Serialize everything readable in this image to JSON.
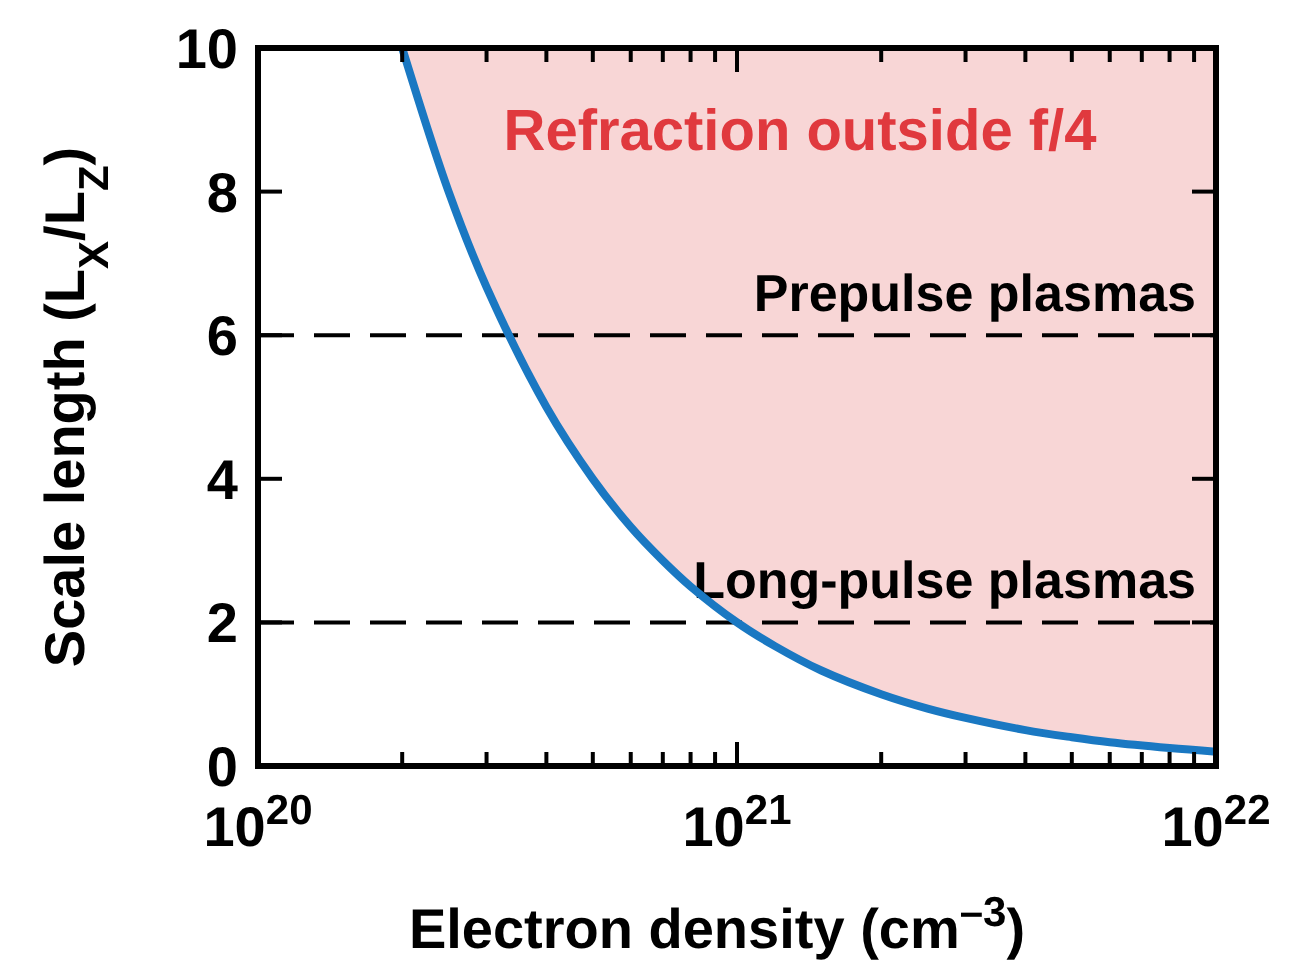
{
  "chart_data": {
    "type": "line",
    "xlabel": "Electron density (cm$^{–3}$)",
    "ylabel": "Scale length (L$_{X}$/L$_{Z}$)",
    "log": "x",
    "xlim": [
      1e+20,
      1e+22
    ],
    "xticks": [
      {
        "value": 1e+20,
        "label": "10$^{20}$"
      },
      {
        "value": 2e+20,
        "label": null
      },
      {
        "value": 3e+20,
        "label": null
      },
      {
        "value": 4e+20,
        "label": null
      },
      {
        "value": 5e+20,
        "label": null
      },
      {
        "value": 6e+20,
        "label": null
      },
      {
        "value": 7e+20,
        "label": null
      },
      {
        "value": 8e+20,
        "label": null
      },
      {
        "value": 9e+20,
        "label": null
      },
      {
        "value": 1e+21,
        "label": "10$^{21}$"
      },
      {
        "value": 2e+21,
        "label": null
      },
      {
        "value": 3e+21,
        "label": null
      },
      {
        "value": 4e+21,
        "label": null
      },
      {
        "value": 5e+21,
        "label": null
      },
      {
        "value": 6e+21,
        "label": null
      },
      {
        "value": 7e+21,
        "label": null
      },
      {
        "value": 8e+21,
        "label": null
      },
      {
        "value": 9e+21,
        "label": null
      },
      {
        "value": 1e+22,
        "label": "10$^{22}$"
      }
    ],
    "ylim": [
      0,
      10
    ],
    "yticks": [
      0,
      2,
      4,
      6,
      8,
      10
    ],
    "grid": false,
    "marker": "none",
    "line_style": "solid",
    "x": [
      2e+20,
      2.5e+20,
      3e+20,
      4e+20,
      5e+20,
      6e+20,
      7e+20,
      8e+20,
      1e+21,
      1.2e+21,
      1.5e+21,
      2e+21,
      2.5e+21,
      3e+21,
      4e+21,
      5e+21,
      6e+21,
      8e+21,
      1e+22
    ],
    "series": [
      {
        "color": "#1a78c2",
        "lower": [
          10,
          8,
          6.67,
          5,
          4,
          3.33,
          2.86,
          2.5,
          2,
          1.67,
          1.33,
          1,
          0.8,
          0.67,
          0.5,
          0.4,
          0.33,
          0.25,
          0.2
        ],
        "upper": [
          10,
          10,
          10,
          10,
          10,
          10,
          10,
          10,
          10,
          10,
          10,
          10,
          10,
          10,
          10,
          10,
          10,
          10,
          10
        ],
        "values": [
          10,
          8,
          6.67,
          5,
          4,
          3.33,
          2.86,
          2.5,
          2,
          1.67,
          1.33,
          1,
          0.8,
          0.67,
          0.5,
          0.4,
          0.33,
          0.25,
          0.2
        ]
      }
    ],
    "ref_lines": [
      {
        "axis": "y",
        "value": 6,
        "label": "Prepulse plasmas",
        "color": "#000000",
        "line_style": "dashed"
      },
      {
        "axis": "y",
        "value": 2,
        "label": "Long-pulse plasmas",
        "color": "#000000",
        "line_style": "dashed"
      }
    ],
    "annotations": [
      "Refraction outside f/4"
    ]
  }
}
